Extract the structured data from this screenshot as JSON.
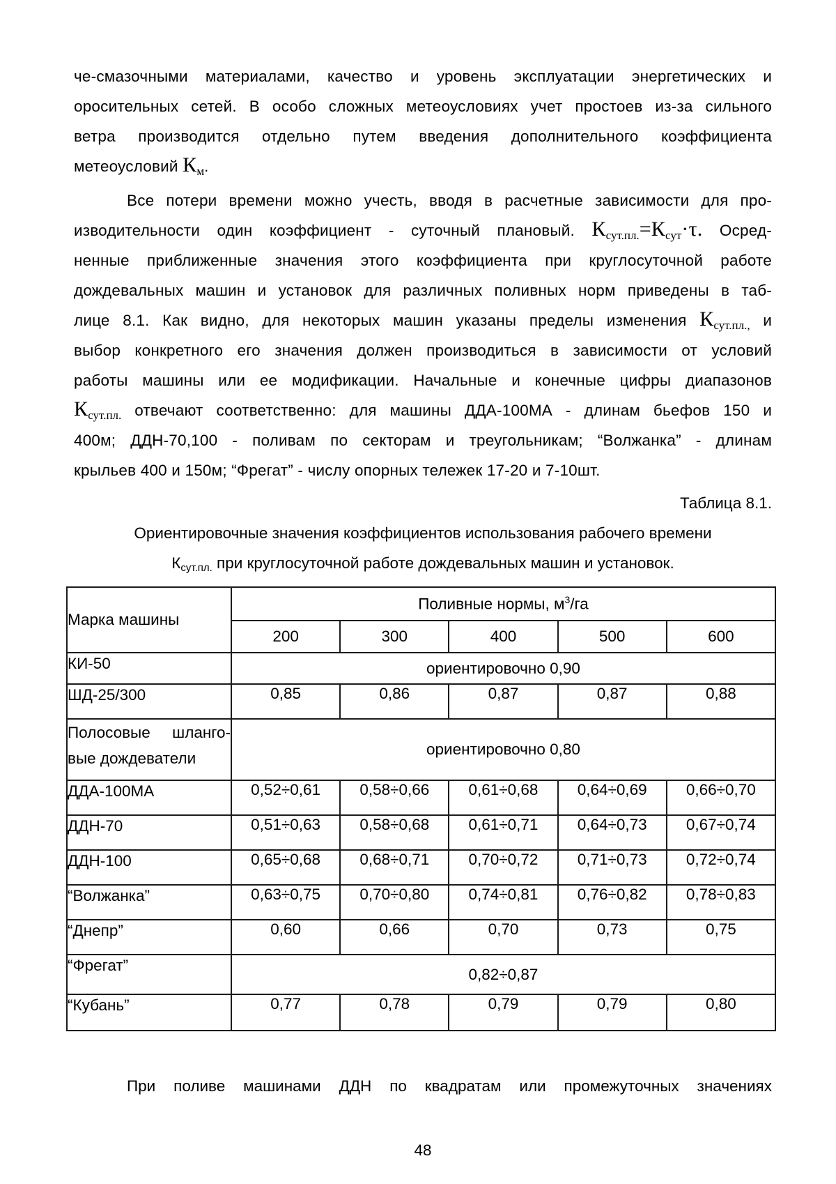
{
  "para1": {
    "l1": "че-смазочными материалами, качество и уровень эксплуатации энергетических и",
    "l2": "оросительных сетей. В особо сложных метеоусловиях учет простоев из-за сильного",
    "l3": "ветра производится отдельно путем введения дополнительного коэффициента",
    "l4_pre": "метеоусловий ",
    "l4_k": "К",
    "l4_sub": "м",
    "l4_post": "."
  },
  "para2": {
    "l1": "Все потери времени можно учесть, вводя в расчетные зависимости для про-",
    "l2_pre": "изводительности один коэффициент - суточный плановый. ",
    "l2_k1": "К",
    "l2_sub1": "сут.пл.",
    "l2_mid": "=К",
    "l2_sub2": "сут",
    "l2_tail": "·τ.",
    "l2_post": " Осред-",
    "l3": "ненные приближенные значения этого коэффициента при круглосуточной работе",
    "l4": "дождевальных машин и установок для различных поливных норм приведены в таб-",
    "l5_pre": "лице 8.1. Как видно, для некоторых машин указаны пределы изменения ",
    "l5_k": "К",
    "l5_sub": "сут.пл.,",
    "l5_post": " и",
    "l6": "выбор конкретного его значения должен производиться в зависимости от условий",
    "l7": "работы машины или ее модификации. Начальные и конечные цифры диапазонов",
    "l8_k": "К",
    "l8_sub": "сут.пл.",
    "l8_post": " отвечают соответственно: для машины ДДА-100МА - длинам бьефов 150 и",
    "l9": "400м; ДДН-70,100 - поливам по секторам и треугольникам; “Волжанка” - длинам",
    "l10": "крыльев 400 и 150м; “Фрегат” - числу опорных тележек 17-20 и 7-10шт."
  },
  "table_label": "Таблица 8.1.",
  "caption": {
    "line1": "Ориентировочные значения коэффициентов использования рабочего времени",
    "k": "К",
    "k_sub": "сут.пл.",
    "line2_rest": " при круглосуточной работе дождевальных машин и установок."
  },
  "table": {
    "machine_col_header": "Марка машины",
    "norms_header_pre": "Поливные нормы, м",
    "norms_header_sup": "3",
    "norms_header_post": "/га",
    "norm_values": [
      "200",
      "300",
      "400",
      "500",
      "600"
    ],
    "rows": [
      {
        "label": "КИ-50",
        "span": "ориентировочно 0,90"
      },
      {
        "label": "ШД-25/300",
        "cells": [
          "0,85",
          "0,86",
          "0,87",
          "0,87",
          "0,88"
        ]
      },
      {
        "label_line1": "Полосовые шланго-",
        "label_line2": "вые дождеватели",
        "span": "ориентировочно 0,80"
      },
      {
        "label": "ДДА-100МА",
        "cells": [
          "0,52÷0,61",
          "0,58÷0,66",
          "0,61÷0,68",
          "0,64÷0,69",
          "0,66÷0,70"
        ]
      },
      {
        "label": "ДДН-70",
        "cells": [
          "0,51÷0,63",
          "0,58÷0,68",
          "0,61÷0,71",
          "0,64÷0,73",
          "0,67÷0,74"
        ]
      },
      {
        "label": "ДДН-100",
        "cells": [
          "0,65÷0,68",
          "0,68÷0,71",
          "0,70÷0,72",
          "0,71÷0,73",
          "0,72÷0,74"
        ]
      },
      {
        "label": "“Волжанка”",
        "cells": [
          "0,63÷0,75",
          "0,70÷0,80",
          "0,74÷0,81",
          "0,76÷0,82",
          "0,78÷0,83"
        ]
      },
      {
        "label": "“Днепр”",
        "cells": [
          "0,60",
          "0,66",
          "0,70",
          "0,73",
          "0,75"
        ]
      },
      {
        "label": "“Фрегат”",
        "span": "0,82÷0,87"
      },
      {
        "label": "“Кубань”",
        "cells": [
          "0,77",
          "0,78",
          "0,79",
          "0,79",
          "0,80"
        ]
      }
    ]
  },
  "bottom_para": "При поливе машинами ДДН по квадратам или промежуточных значениях",
  "page_number": "48"
}
